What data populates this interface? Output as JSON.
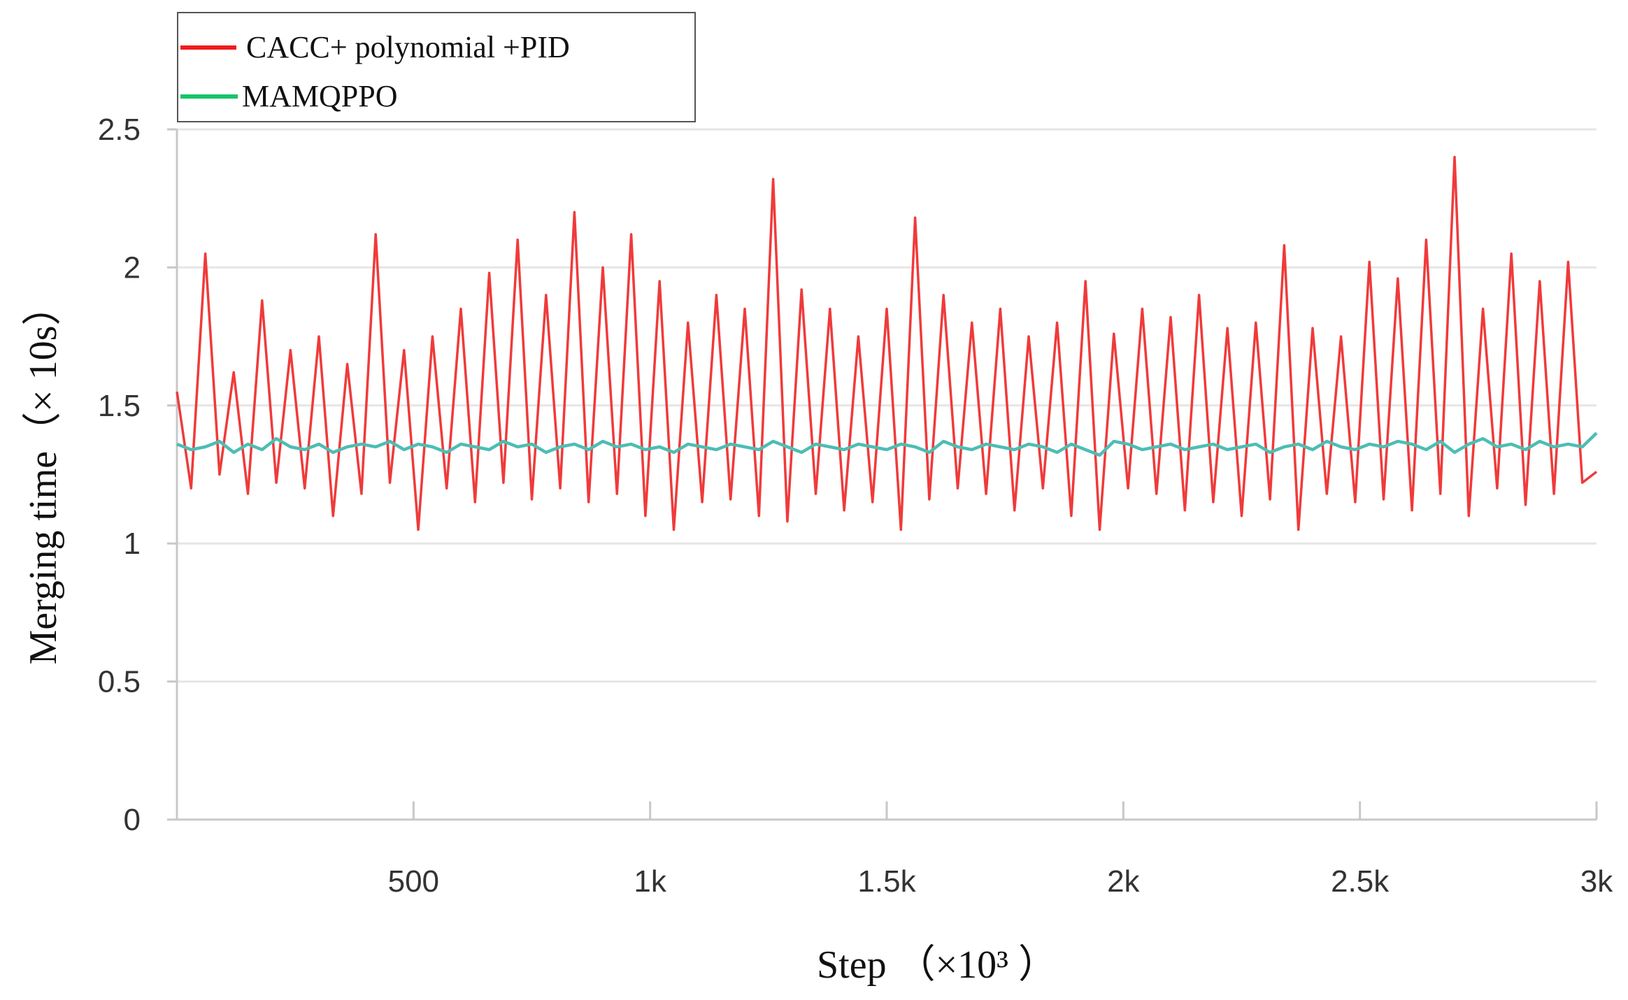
{
  "chart_data": {
    "type": "line",
    "xlabel": "Step  （×10³ ）",
    "ylabel": "Merging time（×  10s）",
    "xlim": [
      0,
      3000
    ],
    "ylim": [
      0,
      2.5
    ],
    "x_ticks": [
      {
        "value": 500,
        "label": "500"
      },
      {
        "value": 1000,
        "label": "1k"
      },
      {
        "value": 1500,
        "label": "1.5k"
      },
      {
        "value": 2000,
        "label": "2k"
      },
      {
        "value": 2500,
        "label": "2.5k"
      },
      {
        "value": 3000,
        "label": "3k"
      }
    ],
    "y_ticks": [
      {
        "value": 0,
        "label": "0"
      },
      {
        "value": 0.5,
        "label": "0.5"
      },
      {
        "value": 1,
        "label": "1"
      },
      {
        "value": 1.5,
        "label": "1.5"
      },
      {
        "value": 2,
        "label": "2"
      },
      {
        "value": 2.5,
        "label": "2.5"
      }
    ],
    "grid": true,
    "legend_position": "top-left",
    "series": [
      {
        "name": "CACC+ polynomial +PID",
        "color": "#f03a3a",
        "legend_color": "#f01a1a",
        "x": [
          0,
          30,
          60,
          90,
          120,
          150,
          180,
          210,
          240,
          270,
          300,
          330,
          360,
          390,
          420,
          450,
          480,
          510,
          540,
          570,
          600,
          630,
          660,
          690,
          720,
          750,
          780,
          810,
          840,
          870,
          900,
          930,
          960,
          990,
          1020,
          1050,
          1080,
          1110,
          1140,
          1170,
          1200,
          1230,
          1260,
          1290,
          1320,
          1350,
          1380,
          1410,
          1440,
          1470,
          1500,
          1530,
          1560,
          1590,
          1620,
          1650,
          1680,
          1710,
          1740,
          1770,
          1800,
          1830,
          1860,
          1890,
          1920,
          1950,
          1980,
          2010,
          2040,
          2070,
          2100,
          2130,
          2160,
          2190,
          2220,
          2250,
          2280,
          2310,
          2340,
          2370,
          2400,
          2430,
          2460,
          2490,
          2520,
          2550,
          2580,
          2610,
          2640,
          2670,
          2700,
          2730,
          2760,
          2790,
          2820,
          2850,
          2880,
          2910,
          2940,
          2970,
          3000
        ],
        "y": [
          1.55,
          1.2,
          2.05,
          1.25,
          1.62,
          1.18,
          1.88,
          1.22,
          1.7,
          1.2,
          1.75,
          1.1,
          1.65,
          1.18,
          2.12,
          1.22,
          1.7,
          1.05,
          1.75,
          1.2,
          1.85,
          1.15,
          1.98,
          1.22,
          2.1,
          1.16,
          1.9,
          1.2,
          2.2,
          1.15,
          2.0,
          1.18,
          2.12,
          1.1,
          1.95,
          1.05,
          1.8,
          1.15,
          1.9,
          1.16,
          1.85,
          1.1,
          2.32,
          1.08,
          1.92,
          1.18,
          1.85,
          1.12,
          1.75,
          1.15,
          1.85,
          1.05,
          2.18,
          1.16,
          1.9,
          1.2,
          1.8,
          1.18,
          1.85,
          1.12,
          1.75,
          1.2,
          1.8,
          1.1,
          1.95,
          1.05,
          1.76,
          1.2,
          1.85,
          1.18,
          1.82,
          1.12,
          1.9,
          1.15,
          1.78,
          1.1,
          1.8,
          1.16,
          2.08,
          1.05,
          1.78,
          1.18,
          1.75,
          1.15,
          2.02,
          1.16,
          1.96,
          1.12,
          2.1,
          1.18,
          2.4,
          1.1,
          1.85,
          1.2,
          2.05,
          1.14,
          1.95,
          1.18,
          2.02,
          1.22,
          1.26
        ],
        "values_note": ""
      },
      {
        "name": "MAMQPPO",
        "color": "#4dbdb4",
        "legend_color": "#16c46a",
        "x": [
          0,
          30,
          60,
          90,
          120,
          150,
          180,
          210,
          240,
          270,
          300,
          330,
          360,
          390,
          420,
          450,
          480,
          510,
          540,
          570,
          600,
          630,
          660,
          690,
          720,
          750,
          780,
          810,
          840,
          870,
          900,
          930,
          960,
          990,
          1020,
          1050,
          1080,
          1110,
          1140,
          1170,
          1200,
          1230,
          1260,
          1290,
          1320,
          1350,
          1380,
          1410,
          1440,
          1470,
          1500,
          1530,
          1560,
          1590,
          1620,
          1650,
          1680,
          1710,
          1740,
          1770,
          1800,
          1830,
          1860,
          1890,
          1920,
          1950,
          1980,
          2010,
          2040,
          2070,
          2100,
          2130,
          2160,
          2190,
          2220,
          2250,
          2280,
          2310,
          2340,
          2370,
          2400,
          2430,
          2460,
          2490,
          2520,
          2550,
          2580,
          2610,
          2640,
          2670,
          2700,
          2730,
          2760,
          2790,
          2820,
          2850,
          2880,
          2910,
          2940,
          2970,
          3000
        ],
        "y": [
          1.36,
          1.34,
          1.35,
          1.37,
          1.33,
          1.36,
          1.34,
          1.38,
          1.35,
          1.34,
          1.36,
          1.33,
          1.35,
          1.36,
          1.35,
          1.37,
          1.34,
          1.36,
          1.35,
          1.33,
          1.36,
          1.35,
          1.34,
          1.37,
          1.35,
          1.36,
          1.33,
          1.35,
          1.36,
          1.34,
          1.37,
          1.35,
          1.36,
          1.34,
          1.35,
          1.33,
          1.36,
          1.35,
          1.34,
          1.36,
          1.35,
          1.34,
          1.37,
          1.35,
          1.33,
          1.36,
          1.35,
          1.34,
          1.36,
          1.35,
          1.34,
          1.36,
          1.35,
          1.33,
          1.37,
          1.35,
          1.34,
          1.36,
          1.35,
          1.34,
          1.36,
          1.35,
          1.33,
          1.36,
          1.34,
          1.32,
          1.37,
          1.36,
          1.34,
          1.35,
          1.36,
          1.34,
          1.35,
          1.36,
          1.34,
          1.35,
          1.36,
          1.33,
          1.35,
          1.36,
          1.34,
          1.37,
          1.35,
          1.34,
          1.36,
          1.35,
          1.37,
          1.36,
          1.34,
          1.37,
          1.33,
          1.36,
          1.38,
          1.35,
          1.36,
          1.34,
          1.37,
          1.35,
          1.36,
          1.35,
          1.4
        ]
      }
    ]
  }
}
